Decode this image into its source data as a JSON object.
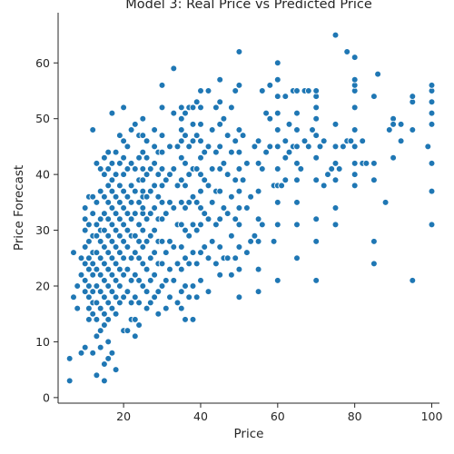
{
  "chart_data": {
    "type": "scatter",
    "title": "Model 3: Real Price vs Predicted Price",
    "xlabel": "Price",
    "ylabel": "Price Forecast",
    "xlim": [
      3,
      102
    ],
    "ylim": [
      -1,
      69
    ],
    "xticks": [
      20,
      40,
      60,
      80,
      100
    ],
    "yticks": [
      0,
      10,
      20,
      30,
      40,
      50,
      60
    ],
    "grid": false,
    "marker_color": "#1f77b4",
    "x": [
      6,
      6,
      7,
      7,
      8,
      8,
      9,
      9,
      9,
      10,
      10,
      10,
      10,
      10,
      10,
      10,
      10,
      11,
      11,
      11,
      11,
      11,
      11,
      11,
      11,
      11,
      12,
      12,
      12,
      12,
      12,
      12,
      12,
      12,
      12,
      12,
      12,
      13,
      13,
      13,
      13,
      13,
      13,
      13,
      13,
      13,
      13,
      13,
      14,
      14,
      14,
      14,
      14,
      14,
      14,
      14,
      14,
      14,
      14,
      15,
      15,
      15,
      15,
      15,
      15,
      15,
      15,
      15,
      15,
      15,
      15,
      15,
      16,
      16,
      16,
      16,
      16,
      16,
      16,
      16,
      16,
      16,
      16,
      16,
      16,
      17,
      17,
      17,
      17,
      17,
      17,
      17,
      17,
      17,
      17,
      17,
      17,
      18,
      18,
      18,
      18,
      18,
      18,
      18,
      18,
      18,
      18,
      18,
      19,
      19,
      19,
      19,
      19,
      19,
      19,
      19,
      19,
      19,
      20,
      20,
      20,
      20,
      20,
      20,
      20,
      20,
      20,
      20,
      20,
      20,
      21,
      21,
      21,
      21,
      21,
      21,
      21,
      21,
      21,
      22,
      22,
      22,
      22,
      22,
      22,
      22,
      22,
      22,
      22,
      23,
      23,
      23,
      23,
      23,
      23,
      23,
      23,
      23,
      23,
      24,
      24,
      24,
      24,
      24,
      24,
      24,
      24,
      24,
      24,
      25,
      25,
      25,
      25,
      25,
      25,
      25,
      25,
      25,
      25,
      25,
      25,
      25,
      26,
      26,
      26,
      26,
      26,
      26,
      26,
      26,
      26,
      27,
      27,
      27,
      27,
      27,
      27,
      27,
      28,
      28,
      28,
      28,
      28,
      28,
      28,
      28,
      28,
      29,
      29,
      29,
      29,
      29,
      29,
      29,
      29,
      30,
      30,
      30,
      30,
      30,
      30,
      30,
      30,
      30,
      30,
      30,
      31,
      31,
      31,
      31,
      31,
      32,
      32,
      32,
      32,
      32,
      32,
      33,
      33,
      33,
      33,
      33,
      33,
      34,
      34,
      34,
      34,
      34,
      35,
      35,
      35,
      35,
      35,
      35,
      35,
      35,
      35,
      35,
      35,
      35,
      36,
      36,
      36,
      36,
      36,
      36,
      36,
      36,
      36,
      37,
      37,
      37,
      37,
      37,
      37,
      37,
      38,
      38,
      38,
      38,
      38,
      38,
      38,
      38,
      38,
      39,
      39,
      39,
      39,
      39,
      39,
      39,
      40,
      40,
      40,
      40,
      40,
      40,
      40,
      40,
      40,
      40,
      40,
      41,
      41,
      41,
      41,
      42,
      42,
      42,
      42,
      42,
      42,
      43,
      43,
      43,
      43,
      44,
      44,
      44,
      44,
      44,
      45,
      45,
      45,
      45,
      45,
      45,
      45,
      45,
      45,
      46,
      46,
      46,
      46,
      47,
      47,
      47,
      47,
      48,
      48,
      48,
      48,
      48,
      49,
      49,
      49,
      49,
      49,
      50,
      50,
      50,
      50,
      50,
      50,
      50,
      50,
      50,
      50,
      50,
      51,
      51,
      52,
      52,
      52,
      53,
      53,
      54,
      54,
      55,
      55,
      55,
      55,
      55,
      55,
      55,
      56,
      56,
      56,
      57,
      57,
      58,
      58,
      58,
      59,
      59,
      60,
      60,
      60,
      60,
      60,
      60,
      60,
      60,
      60,
      60,
      60,
      61,
      62,
      62,
      62,
      62,
      63,
      63,
      64,
      64,
      65,
      65,
      65,
      65,
      65,
      65,
      65,
      65,
      65,
      66,
      67,
      67,
      68,
      68,
      69,
      70,
      70,
      70,
      70,
      70,
      70,
      70,
      70,
      70,
      70,
      71,
      72,
      72,
      73,
      74,
      75,
      75,
      75,
      75,
      75,
      75,
      75,
      76,
      77,
      78,
      78,
      79,
      80,
      80,
      80,
      80,
      80,
      80,
      80,
      80,
      80,
      80,
      82,
      82,
      83,
      85,
      85,
      85,
      85,
      85,
      86,
      88,
      89,
      90,
      90,
      90,
      92,
      92,
      95,
      95,
      95,
      95,
      99,
      100,
      100,
      100,
      100,
      100,
      100,
      100,
      100
    ],
    "y": [
      3,
      7,
      18,
      26,
      16,
      20,
      8,
      22,
      25,
      9,
      19,
      24,
      27,
      30,
      32,
      34,
      21,
      14,
      16,
      18,
      20,
      23,
      25,
      28,
      31,
      36,
      8,
      15,
      17,
      19,
      22,
      24,
      26,
      29,
      33,
      36,
      48,
      4,
      11,
      14,
      17,
      20,
      23,
      26,
      29,
      31,
      35,
      42,
      9,
      12,
      16,
      19,
      22,
      25,
      28,
      30,
      32,
      37,
      41,
      3,
      6,
      13,
      15,
      18,
      21,
      24,
      27,
      30,
      33,
      36,
      40,
      43,
      7,
      10,
      14,
      17,
      20,
      23,
      26,
      29,
      32,
      35,
      38,
      41,
      44,
      8,
      16,
      19,
      22,
      25,
      28,
      31,
      34,
      37,
      39,
      42,
      51,
      5,
      15,
      18,
      21,
      24,
      27,
      30,
      33,
      36,
      40,
      44,
      17,
      20,
      23,
      26,
      29,
      32,
      35,
      38,
      42,
      47,
      12,
      18,
      22,
      25,
      28,
      31,
      34,
      37,
      40,
      43,
      46,
      52,
      12,
      19,
      23,
      27,
      30,
      33,
      36,
      41,
      45,
      14,
      17,
      21,
      25,
      29,
      32,
      35,
      38,
      42,
      48,
      11,
      14,
      18,
      22,
      26,
      29,
      33,
      37,
      41,
      49,
      13,
      17,
      21,
      25,
      28,
      31,
      35,
      39,
      43,
      47,
      20,
      24,
      27,
      30,
      33,
      36,
      39,
      41,
      44,
      47,
      50,
      34,
      37,
      16,
      19,
      23,
      28,
      32,
      36,
      40,
      43,
      46,
      17,
      21,
      25,
      29,
      33,
      37,
      41,
      18,
      22,
      26,
      30,
      34,
      38,
      42,
      45,
      48,
      15,
      19,
      24,
      28,
      32,
      36,
      40,
      44,
      20,
      24,
      28,
      32,
      35,
      38,
      41,
      44,
      47,
      52,
      56,
      16,
      21,
      26,
      33,
      39,
      18,
      23,
      28,
      35,
      40,
      45,
      21,
      27,
      34,
      41,
      51,
      59,
      17,
      24,
      31,
      38,
      45,
      16,
      19,
      23,
      27,
      31,
      35,
      39,
      43,
      46,
      48,
      50,
      52,
      14,
      20,
      25,
      30,
      34,
      38,
      42,
      47,
      51,
      18,
      24,
      29,
      35,
      40,
      45,
      52,
      14,
      20,
      26,
      31,
      36,
      41,
      46,
      49,
      52,
      18,
      24,
      30,
      35,
      41,
      47,
      53,
      21,
      26,
      31,
      34,
      37,
      40,
      43,
      46,
      49,
      52,
      55,
      27,
      33,
      39,
      44,
      19,
      25,
      32,
      38,
      45,
      55,
      28,
      35,
      41,
      48,
      24,
      31,
      37,
      44,
      52,
      22,
      27,
      32,
      37,
      41,
      45,
      49,
      53,
      57,
      25,
      34,
      42,
      50,
      25,
      33,
      40,
      47,
      22,
      29,
      36,
      44,
      52,
      25,
      32,
      39,
      46,
      55,
      18,
      23,
      27,
      31,
      34,
      37,
      41,
      44,
      48,
      56,
      62,
      39,
      47,
      26,
      34,
      42,
      28,
      36,
      29,
      45,
      19,
      23,
      28,
      32,
      37,
      42,
      46,
      31,
      41,
      55,
      44,
      51,
      45,
      50,
      56,
      28,
      38,
      21,
      31,
      35,
      38,
      41,
      45,
      48,
      51,
      54,
      57,
      60,
      38,
      39,
      43,
      46,
      54,
      44,
      49,
      45,
      55,
      25,
      31,
      35,
      39,
      42,
      45,
      48,
      51,
      55,
      41,
      46,
      55,
      45,
      55,
      48,
      21,
      28,
      32,
      39,
      43,
      47,
      50,
      52,
      54,
      55,
      45,
      38,
      46,
      40,
      41,
      31,
      34,
      39,
      42,
      45,
      49,
      65,
      41,
      45,
      62,
      46,
      46,
      38,
      40,
      42,
      45,
      48,
      52,
      55,
      56,
      57,
      61,
      46,
      42,
      42,
      24,
      28,
      39,
      42,
      54,
      58,
      35,
      48,
      50,
      43,
      49,
      46,
      49,
      21,
      48,
      53,
      54,
      45,
      31,
      37,
      42,
      49,
      51,
      53,
      55,
      56
    ]
  }
}
